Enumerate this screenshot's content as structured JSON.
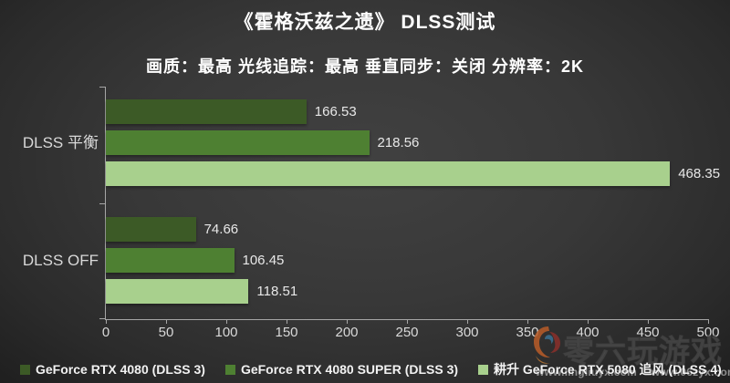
{
  "title": "《霍格沃兹之遗》 DLSS测试",
  "subtitle": "画质：最高  光线追踪：最高 垂直同步：关闭  分辨率：2K",
  "chart_data": {
    "type": "bar",
    "orientation": "horizontal",
    "title": "《霍格沃兹之遗》 DLSS测试",
    "subtitle": "画质：最高  光线追踪：最高 垂直同步：关闭  分辨率：2K",
    "categories": [
      "DLSS 平衡",
      "DLSS  OFF"
    ],
    "series": [
      {
        "name": "GeForce RTX 4080 (DLSS 3)",
        "color": "#3c5a26",
        "values": [
          166.53,
          74.66
        ]
      },
      {
        "name": "GeForce RTX 4080 SUPER (DLSS 3)",
        "color": "#4e8032",
        "values": [
          218.56,
          106.45
        ]
      },
      {
        "name": "耕升 GeForce RTX 5080 追风 (DLSS  4)",
        "color": "#a8d08d",
        "values": [
          468.35,
          118.51
        ]
      }
    ],
    "xlim": [
      0,
      500
    ],
    "xticks": [
      0,
      50,
      100,
      150,
      200,
      250,
      300,
      350,
      400,
      450,
      500
    ],
    "grid": false,
    "legend_position": "bottom",
    "value_labels": true
  },
  "watermark": {
    "text": "零六玩游戏",
    "urls": "www.lingliuyx.com　 www.06zyx.com"
  },
  "colors": {
    "background_center": "#414141",
    "background_edge": "#1f1f1f",
    "axis": "#a6a6a6",
    "text_primary": "#ffffff",
    "text_secondary": "#d9d9d9"
  }
}
